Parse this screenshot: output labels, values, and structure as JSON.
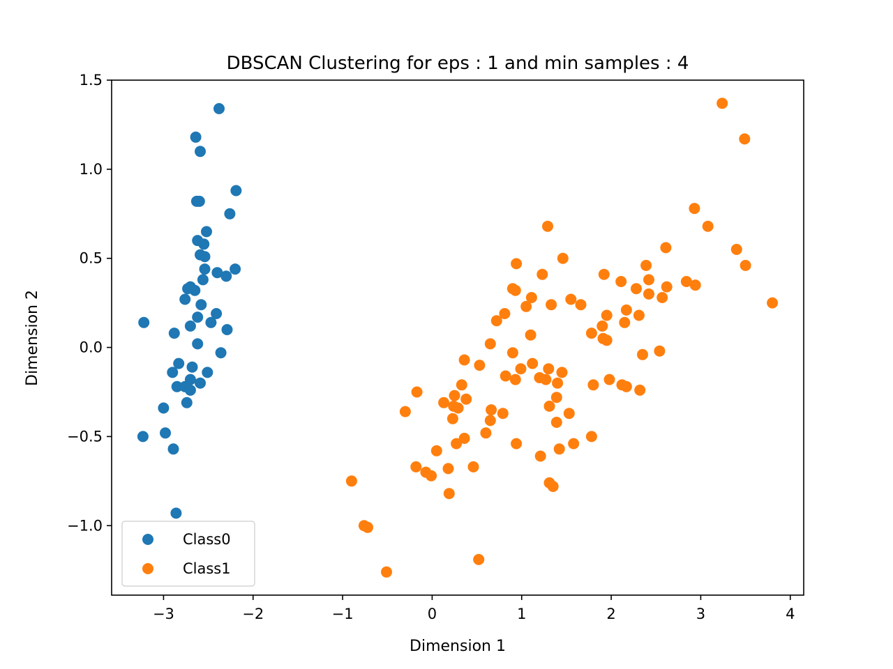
{
  "chart_data": {
    "type": "scatter",
    "title": "DBSCAN Clustering for eps : 1 and min samples : 4",
    "xlabel": "Dimension 1",
    "ylabel": "Dimension 2",
    "xlim": [
      -3.58,
      4.15
    ],
    "ylim": [
      -1.39,
      1.5
    ],
    "xticks": [
      -3,
      -2,
      -1,
      0,
      1,
      2,
      3,
      4
    ],
    "xtick_labels": [
      "−3",
      "−2",
      "−1",
      "0",
      "1",
      "2",
      "3",
      "4"
    ],
    "yticks": [
      -1.0,
      -0.5,
      0.0,
      0.5,
      1.0,
      1.5
    ],
    "ytick_labels": [
      "−1.0",
      "−0.5",
      "0.0",
      "0.5",
      "1.0",
      "1.5"
    ],
    "grid": false,
    "legend_position": "lower-left",
    "series": [
      {
        "name": "Class0",
        "color": "#1f77b4",
        "points": [
          [
            -2.38,
            1.34
          ],
          [
            -2.64,
            1.18
          ],
          [
            -2.59,
            1.1
          ],
          [
            -2.19,
            0.88
          ],
          [
            -2.63,
            0.82
          ],
          [
            -2.6,
            0.82
          ],
          [
            -2.26,
            0.75
          ],
          [
            -2.52,
            0.65
          ],
          [
            -2.62,
            0.6
          ],
          [
            -2.55,
            0.58
          ],
          [
            -2.59,
            0.52
          ],
          [
            -2.54,
            0.51
          ],
          [
            -2.54,
            0.44
          ],
          [
            -2.2,
            0.44
          ],
          [
            -2.4,
            0.42
          ],
          [
            -2.3,
            0.4
          ],
          [
            -2.56,
            0.38
          ],
          [
            -2.7,
            0.34
          ],
          [
            -2.73,
            0.33
          ],
          [
            -2.65,
            0.32
          ],
          [
            -2.76,
            0.27
          ],
          [
            -2.58,
            0.24
          ],
          [
            -2.41,
            0.19
          ],
          [
            -2.62,
            0.17
          ],
          [
            -3.22,
            0.14
          ],
          [
            -2.47,
            0.14
          ],
          [
            -2.7,
            0.12
          ],
          [
            -2.29,
            0.1
          ],
          [
            -2.88,
            0.08
          ],
          [
            -2.62,
            0.02
          ],
          [
            -2.36,
            -0.03
          ],
          [
            -2.83,
            -0.09
          ],
          [
            -2.68,
            -0.11
          ],
          [
            -2.9,
            -0.14
          ],
          [
            -2.51,
            -0.14
          ],
          [
            -2.7,
            -0.18
          ],
          [
            -2.59,
            -0.2
          ],
          [
            -2.85,
            -0.22
          ],
          [
            -2.76,
            -0.22
          ],
          [
            -2.7,
            -0.24
          ],
          [
            -2.74,
            -0.31
          ],
          [
            -3.0,
            -0.34
          ],
          [
            -3.23,
            -0.5
          ],
          [
            -2.98,
            -0.48
          ],
          [
            -2.89,
            -0.57
          ],
          [
            -2.86,
            -0.93
          ]
        ]
      },
      {
        "name": "Class1",
        "color": "#ff7f0e",
        "points": [
          [
            3.24,
            1.37
          ],
          [
            3.49,
            1.17
          ],
          [
            2.93,
            0.78
          ],
          [
            3.08,
            0.68
          ],
          [
            1.29,
            0.68
          ],
          [
            2.61,
            0.56
          ],
          [
            3.4,
            0.55
          ],
          [
            1.46,
            0.5
          ],
          [
            0.94,
            0.47
          ],
          [
            2.39,
            0.46
          ],
          [
            3.5,
            0.46
          ],
          [
            1.23,
            0.41
          ],
          [
            1.92,
            0.41
          ],
          [
            2.42,
            0.38
          ],
          [
            2.84,
            0.37
          ],
          [
            2.11,
            0.37
          ],
          [
            2.94,
            0.35
          ],
          [
            2.62,
            0.34
          ],
          [
            2.28,
            0.33
          ],
          [
            0.9,
            0.33
          ],
          [
            0.93,
            0.32
          ],
          [
            2.42,
            0.3
          ],
          [
            1.11,
            0.28
          ],
          [
            2.57,
            0.28
          ],
          [
            1.55,
            0.27
          ],
          [
            3.8,
            0.25
          ],
          [
            1.33,
            0.24
          ],
          [
            1.66,
            0.24
          ],
          [
            1.05,
            0.23
          ],
          [
            2.17,
            0.21
          ],
          [
            0.81,
            0.19
          ],
          [
            1.95,
            0.18
          ],
          [
            2.31,
            0.18
          ],
          [
            0.72,
            0.15
          ],
          [
            2.15,
            0.14
          ],
          [
            1.9,
            0.12
          ],
          [
            1.78,
            0.08
          ],
          [
            1.1,
            0.07
          ],
          [
            1.91,
            0.05
          ],
          [
            1.95,
            0.04
          ],
          [
            0.65,
            0.02
          ],
          [
            2.54,
            -0.02
          ],
          [
            0.9,
            -0.03
          ],
          [
            2.35,
            -0.04
          ],
          [
            0.36,
            -0.07
          ],
          [
            1.12,
            -0.09
          ],
          [
            0.53,
            -0.1
          ],
          [
            0.99,
            -0.12
          ],
          [
            1.3,
            -0.12
          ],
          [
            1.45,
            -0.14
          ],
          [
            0.82,
            -0.16
          ],
          [
            1.2,
            -0.17
          ],
          [
            0.93,
            -0.18
          ],
          [
            1.27,
            -0.18
          ],
          [
            1.98,
            -0.18
          ],
          [
            1.4,
            -0.2
          ],
          [
            0.33,
            -0.21
          ],
          [
            2.12,
            -0.21
          ],
          [
            1.8,
            -0.21
          ],
          [
            2.17,
            -0.22
          ],
          [
            2.32,
            -0.24
          ],
          [
            -0.17,
            -0.25
          ],
          [
            0.25,
            -0.27
          ],
          [
            1.39,
            -0.28
          ],
          [
            0.38,
            -0.29
          ],
          [
            0.13,
            -0.31
          ],
          [
            0.24,
            -0.33
          ],
          [
            1.31,
            -0.33
          ],
          [
            0.29,
            -0.34
          ],
          [
            0.66,
            -0.35
          ],
          [
            -0.3,
            -0.36
          ],
          [
            1.53,
            -0.37
          ],
          [
            0.79,
            -0.37
          ],
          [
            0.23,
            -0.4
          ],
          [
            0.65,
            -0.41
          ],
          [
            1.39,
            -0.42
          ],
          [
            0.6,
            -0.48
          ],
          [
            1.78,
            -0.5
          ],
          [
            0.36,
            -0.51
          ],
          [
            0.27,
            -0.54
          ],
          [
            0.94,
            -0.54
          ],
          [
            1.58,
            -0.54
          ],
          [
            0.05,
            -0.58
          ],
          [
            1.42,
            -0.57
          ],
          [
            1.21,
            -0.61
          ],
          [
            -0.18,
            -0.67
          ],
          [
            0.46,
            -0.67
          ],
          [
            0.18,
            -0.68
          ],
          [
            -0.07,
            -0.7
          ],
          [
            -0.01,
            -0.72
          ],
          [
            -0.9,
            -0.75
          ],
          [
            1.31,
            -0.76
          ],
          [
            1.35,
            -0.78
          ],
          [
            0.19,
            -0.82
          ],
          [
            -0.76,
            -1.0
          ],
          [
            -0.72,
            -1.01
          ],
          [
            0.52,
            -1.19
          ],
          [
            -0.51,
            -1.26
          ]
        ]
      }
    ]
  }
}
